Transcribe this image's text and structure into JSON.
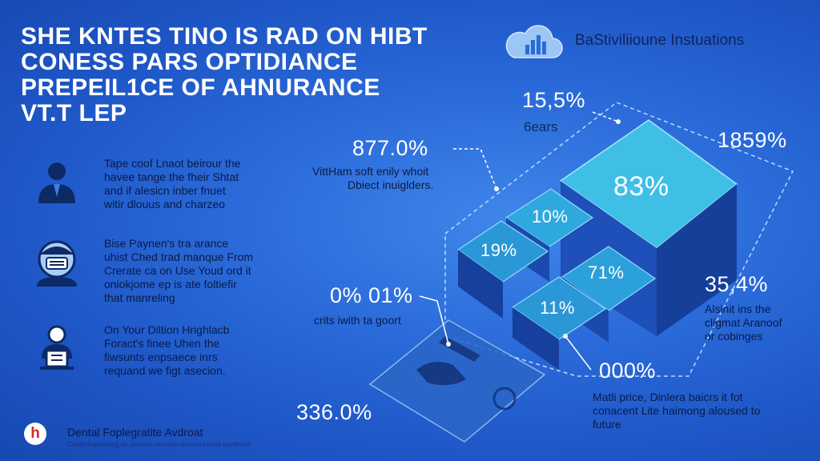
{
  "title_lines": [
    "SHE KNTES TINO IS RAD ON HIBT",
    "CONESS PARS OPTIDIANCE",
    "PREPEIL1CE OF AHNURANCE",
    "VT.T lep"
  ],
  "brand": {
    "name": "BaStiviliioune Instuations",
    "icon": "cloud-bar-chart-icon"
  },
  "side_items": [
    {
      "icon": "person-icon",
      "lines": [
        "Tape coof Lnaot beirour the",
        "havee tange the fheir Shtat",
        "and if alesicn inber fnuet",
        "witir dlouus and charzeo"
      ]
    },
    {
      "icon": "masked-person-icon",
      "lines": [
        "Bise Paynen's tra arance",
        "uhist Ched trad manque From",
        "Crerate ca on Use Youd ord it",
        "oniokjome ep is ate foltiefir",
        "that manreling"
      ]
    },
    {
      "icon": "presenter-icon",
      "lines": [
        "On Your Diltion Hrighlacb",
        "Foract's finee Uhen the",
        "fiwsunts enpsaece inrs",
        "requand we figt asecion."
      ]
    }
  ],
  "stats": {
    "top": "15,5%",
    "top_sub": "6ears",
    "left": "877.0%",
    "left_note": [
      "VittHam soft enily whoit",
      "Dbiect inuiglders."
    ],
    "right": "1859%",
    "big": "83%",
    "block_a": "10%",
    "block_b": "19%",
    "block_c": "71%",
    "block_d": "11%",
    "low_left": "0% 01%",
    "low_left_note": "crits iwith ta goort",
    "mid_right": "35,4%",
    "mid_right_note": [
      "Alsinit ins the",
      "cligmat Aranoof",
      "or cobinges"
    ],
    "bottom_right": "000%",
    "bottom_right_note": [
      "Matli price, Dinlera baicrs it fot",
      "conacent Lite haimong aloused to",
      "future"
    ],
    "bottom_left": "336.0%"
  },
  "footer": {
    "logo_letter": "h",
    "name": "Dental Foplegratite Avdroat",
    "sub": "Coleld Bapnosleig de sonsoile onmaen oluacaes leme bacilltoed"
  },
  "colors": {
    "background": "#2a6ad9",
    "accent_cyan": "#3fbfe6",
    "text_dark": "#0a1a45",
    "text_light": "#ffffff"
  }
}
